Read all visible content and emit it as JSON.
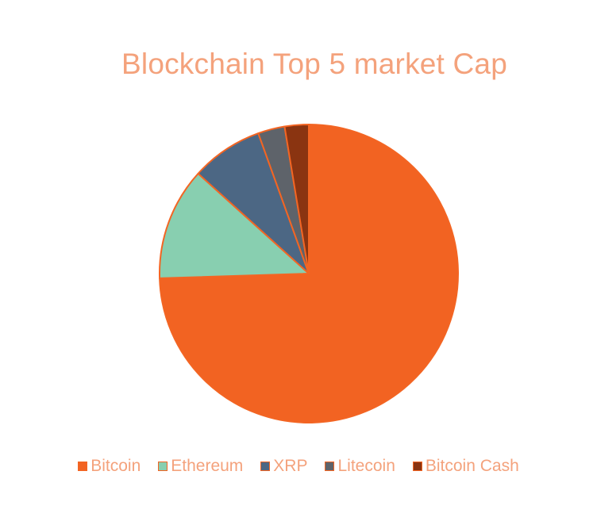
{
  "chart_data": {
    "type": "pie",
    "title": "Blockchain Top 5 market Cap",
    "legend_position": "bottom",
    "categories": [
      "Bitcoin",
      "Ethereum",
      "XRP",
      "Litecoin",
      "Bitcoin Cash"
    ],
    "values": [
      74.5,
      12.2,
      7.8,
      2.9,
      2.6
    ],
    "colors": [
      "#F26322",
      "#88CFB0",
      "#4C6784",
      "#5E636A",
      "#8A3411"
    ],
    "label_color": "#F4A27C",
    "edge_color": "#F36523"
  }
}
